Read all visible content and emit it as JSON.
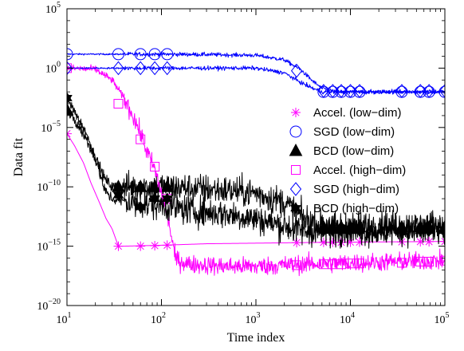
{
  "chart_data": {
    "type": "line",
    "title": "",
    "xlabel": "Time index",
    "ylabel": "Data fit",
    "xscale": "log",
    "yscale": "log",
    "xlim": [
      10,
      100000
    ],
    "ylim": [
      1e-20,
      100000
    ],
    "x_ticks": [
      {
        "value": 10,
        "base": "10",
        "exp": "1"
      },
      {
        "value": 100,
        "base": "10",
        "exp": "2"
      },
      {
        "value": 1000,
        "base": "10",
        "exp": "3"
      },
      {
        "value": 10000,
        "base": "10",
        "exp": "4"
      },
      {
        "value": 100000,
        "base": "10",
        "exp": "5"
      }
    ],
    "y_ticks": [
      {
        "value": 1e-20,
        "base": "10",
        "exp": "−20"
      },
      {
        "value": 1e-15,
        "base": "10",
        "exp": "−15"
      },
      {
        "value": 1e-10,
        "base": "10",
        "exp": "−10"
      },
      {
        "value": 1e-05,
        "base": "10",
        "exp": "−5"
      },
      {
        "value": 1,
        "base": "10",
        "exp": "0"
      },
      {
        "value": 100000,
        "base": "10",
        "exp": "5"
      }
    ],
    "grid": false,
    "legend_position": "right",
    "series": [
      {
        "name": "Accel. (low−dim)",
        "color": "#ff00ff",
        "marker": "asterisk",
        "filled": false,
        "noisy": false,
        "line": [
          [
            10,
            3e-06
          ],
          [
            12,
            3e-07
          ],
          [
            15,
            1e-08
          ],
          [
            18,
            2e-10
          ],
          [
            22,
            5e-12
          ],
          [
            26,
            2e-13
          ],
          [
            30,
            3e-14
          ],
          [
            35,
            1e-15
          ],
          [
            40,
            1e-15
          ],
          [
            100,
            1.2e-15
          ],
          [
            300,
            1.6e-15
          ],
          [
            1000,
            1.8e-15
          ],
          [
            3000,
            2e-15
          ],
          [
            10000,
            2.2e-15
          ],
          [
            100000,
            2.5e-15
          ]
        ],
        "markers": [
          [
            10,
            3e-06
          ],
          [
            35,
            1e-15
          ],
          [
            60,
            1e-15
          ],
          [
            85,
            1.1e-15
          ],
          [
            115,
            1.2e-15
          ],
          [
            2700,
            2e-15
          ],
          [
            5200,
            2.1e-15
          ],
          [
            6500,
            2.1e-15
          ],
          [
            8000,
            2.1e-15
          ],
          [
            10000,
            2.2e-15
          ],
          [
            12500,
            2.2e-15
          ],
          [
            35000,
            2.3e-15
          ],
          [
            55000,
            2.4e-15
          ],
          [
            68000,
            2.4e-15
          ],
          [
            100000,
            2.5e-15
          ]
        ]
      },
      {
        "name": "SGD (low−dim)",
        "color": "#0000ff",
        "marker": "circle",
        "filled": false,
        "noisy": true,
        "noise": 0.12,
        "line": [
          [
            10,
            15
          ],
          [
            100,
            15
          ],
          [
            300,
            14
          ],
          [
            1000,
            12
          ],
          [
            2000,
            5
          ],
          [
            3000,
            0.7
          ],
          [
            4000,
            0.08
          ],
          [
            5000,
            0.02
          ],
          [
            7000,
            0.01
          ],
          [
            20000,
            0.01
          ],
          [
            100000,
            0.01
          ]
        ],
        "markers": [
          [
            10,
            15
          ],
          [
            35,
            15
          ],
          [
            60,
            15
          ],
          [
            85,
            15
          ],
          [
            115,
            15
          ],
          [
            5200,
            0.01
          ],
          [
            6500,
            0.01
          ],
          [
            8000,
            0.01
          ],
          [
            10000,
            0.01
          ],
          [
            12500,
            0.01
          ],
          [
            35000,
            0.01
          ],
          [
            55000,
            0.01
          ],
          [
            68000,
            0.01
          ],
          [
            100000,
            0.01
          ]
        ]
      },
      {
        "name": "BCD (low−dim)",
        "color": "#000000",
        "marker": "triangle",
        "filled": true,
        "noisy": true,
        "noise": 0.9,
        "line": [
          [
            10,
            0.0003
          ],
          [
            15,
            3e-06
          ],
          [
            20,
            3e-08
          ],
          [
            25,
            5e-10
          ],
          [
            30,
            1e-10
          ],
          [
            60,
            1e-10
          ],
          [
            100,
            1e-10
          ],
          [
            200,
            8e-11
          ],
          [
            500,
            5e-11
          ],
          [
            1000,
            3e-11
          ],
          [
            2000,
            5e-12
          ],
          [
            3000,
            3e-13
          ],
          [
            5000,
            5e-14
          ],
          [
            10000,
            5e-14
          ],
          [
            100000,
            5e-14
          ]
        ],
        "markers": [
          [
            10,
            0.0003
          ],
          [
            35,
            1e-10
          ],
          [
            60,
            1e-10
          ],
          [
            85,
            1e-10
          ],
          [
            115,
            1e-10
          ],
          [
            5200,
            4e-14
          ],
          [
            6500,
            4e-14
          ],
          [
            8000,
            4e-14
          ],
          [
            10000,
            4e-14
          ],
          [
            12500,
            4e-14
          ],
          [
            35000,
            4e-14
          ],
          [
            55000,
            4e-14
          ],
          [
            68000,
            4e-14
          ],
          [
            100000,
            4e-14
          ]
        ]
      },
      {
        "name": "Accel. (high−dim)",
        "color": "#ff00ff",
        "marker": "square",
        "filled": false,
        "noisy": true,
        "noise": 0.55,
        "line": [
          [
            10,
            1
          ],
          [
            20,
            0.8
          ],
          [
            30,
            0.1
          ],
          [
            40,
            0.003
          ],
          [
            50,
            0.0001
          ],
          [
            60,
            3e-06
          ],
          [
            70,
            1e-07
          ],
          [
            85,
            3e-09
          ],
          [
            100,
            3e-11
          ],
          [
            120,
            1e-13
          ],
          [
            140,
            1e-16
          ],
          [
            160,
            5e-17
          ],
          [
            200,
            3e-17
          ],
          [
            500,
            2e-17
          ],
          [
            1000,
            2e-17
          ],
          [
            3000,
            3e-17
          ],
          [
            10000,
            4e-17
          ],
          [
            100000,
            6e-17
          ]
        ],
        "markers": [
          [
            10,
            1
          ],
          [
            35,
            0.001
          ],
          [
            60,
            1e-06
          ],
          [
            85,
            5e-09
          ],
          [
            115,
            1e-11
          ],
          [
            2700,
            2.5e-17
          ],
          [
            5200,
            3e-17
          ],
          [
            6500,
            3e-17
          ],
          [
            8000,
            3e-17
          ],
          [
            10000,
            3.5e-17
          ],
          [
            12500,
            3.5e-17
          ],
          [
            35000,
            4e-17
          ],
          [
            55000,
            5e-17
          ],
          [
            68000,
            5e-17
          ],
          [
            100000,
            6e-17
          ]
        ]
      },
      {
        "name": "SGD (high−dim)",
        "color": "#0000ff",
        "marker": "diamond",
        "filled": false,
        "noisy": true,
        "noise": 0.12,
        "line": [
          [
            10,
            1
          ],
          [
            100,
            1
          ],
          [
            300,
            1
          ],
          [
            1000,
            1
          ],
          [
            2000,
            0.4
          ],
          [
            3000,
            0.06
          ],
          [
            4000,
            0.02
          ],
          [
            5000,
            0.01
          ],
          [
            10000,
            0.01
          ],
          [
            100000,
            0.01
          ]
        ],
        "markers": [
          [
            10,
            1
          ],
          [
            35,
            1
          ],
          [
            60,
            1
          ],
          [
            85,
            1
          ],
          [
            115,
            1
          ],
          [
            2700,
            0.6
          ],
          [
            5200,
            0.012
          ],
          [
            6500,
            0.012
          ],
          [
            8000,
            0.012
          ],
          [
            10000,
            0.012
          ],
          [
            12500,
            0.012
          ],
          [
            35000,
            0.012
          ],
          [
            55000,
            0.012
          ],
          [
            68000,
            0.012
          ],
          [
            100000,
            0.012
          ]
        ]
      },
      {
        "name": "BCD (high−dim)",
        "color": "#000000",
        "marker": "hexagram",
        "filled": true,
        "noisy": true,
        "noise": 0.9,
        "line": [
          [
            10,
            0.003
          ],
          [
            15,
            1e-05
          ],
          [
            20,
            3e-08
          ],
          [
            25,
            5e-11
          ],
          [
            30,
            1e-11
          ],
          [
            60,
            3e-12
          ],
          [
            100,
            3e-12
          ],
          [
            200,
            1e-12
          ],
          [
            500,
            5e-13
          ],
          [
            1000,
            2e-13
          ],
          [
            2000,
            5e-14
          ],
          [
            3000,
            2e-14
          ],
          [
            5000,
            2e-14
          ],
          [
            10000,
            2e-14
          ],
          [
            100000,
            2e-14
          ]
        ],
        "markers": [
          [
            10,
            0.003
          ],
          [
            35,
            2e-11
          ],
          [
            60,
            2e-12
          ],
          [
            85,
            1e-11
          ],
          [
            115,
            1e-11
          ],
          [
            5200,
            2e-14
          ],
          [
            6500,
            2e-14
          ],
          [
            8000,
            2e-14
          ],
          [
            10000,
            2e-14
          ],
          [
            12500,
            2e-14
          ],
          [
            35000,
            2e-14
          ],
          [
            55000,
            2e-14
          ],
          [
            68000,
            2e-14
          ],
          [
            100000,
            2e-14
          ]
        ]
      }
    ]
  }
}
